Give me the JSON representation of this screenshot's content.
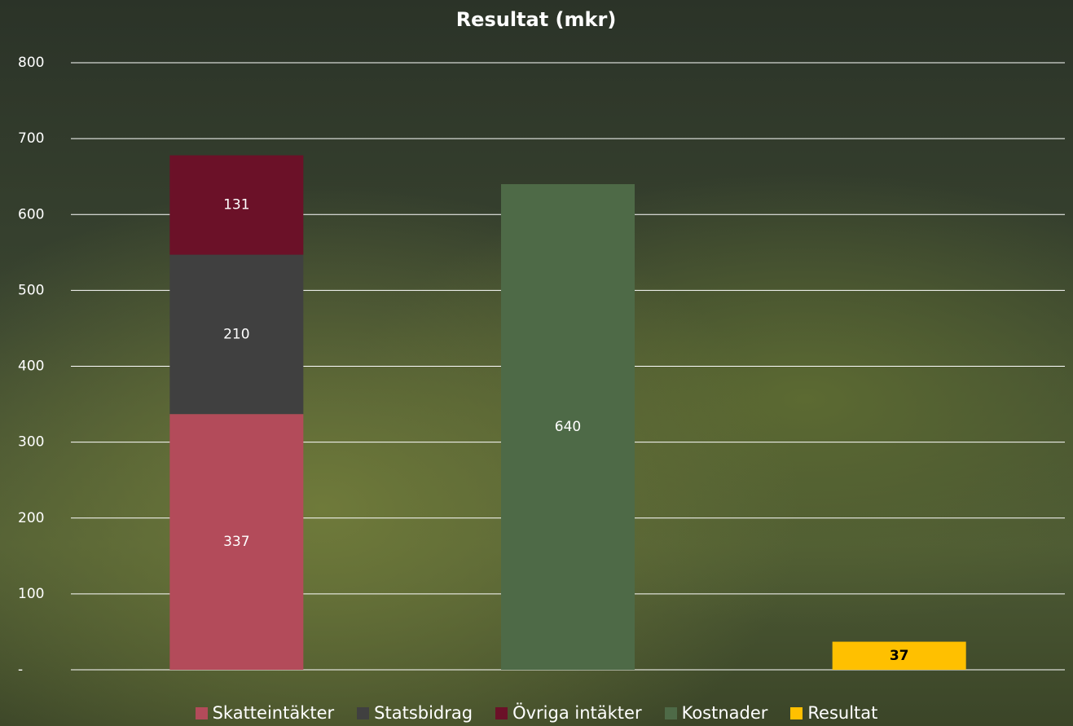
{
  "chart_data": {
    "type": "stacked-bar",
    "title": "Resultat (mkr)",
    "categories": [
      null,
      null,
      null
    ],
    "series": [
      {
        "name": "Skatteintäkter",
        "color": "#b34b5a",
        "values": [
          337,
          null,
          null
        ]
      },
      {
        "name": "Statsbidrag",
        "color": "#404040",
        "values": [
          210,
          null,
          null
        ]
      },
      {
        "name": "Övriga intäkter",
        "color": "#6b1128",
        "values": [
          131,
          null,
          null
        ]
      },
      {
        "name": "Kostnader",
        "color": "#4e6a47",
        "values": [
          null,
          640,
          null
        ]
      },
      {
        "name": "Resultat",
        "color": "#ffc000",
        "values": [
          null,
          null,
          37
        ]
      }
    ],
    "ylim": [
      0,
      800
    ],
    "yticks": [
      {
        "value": 0,
        "label": "-"
      },
      100,
      200,
      300,
      400,
      500,
      600,
      700,
      800
    ],
    "grid": true,
    "legend": "bottom"
  }
}
